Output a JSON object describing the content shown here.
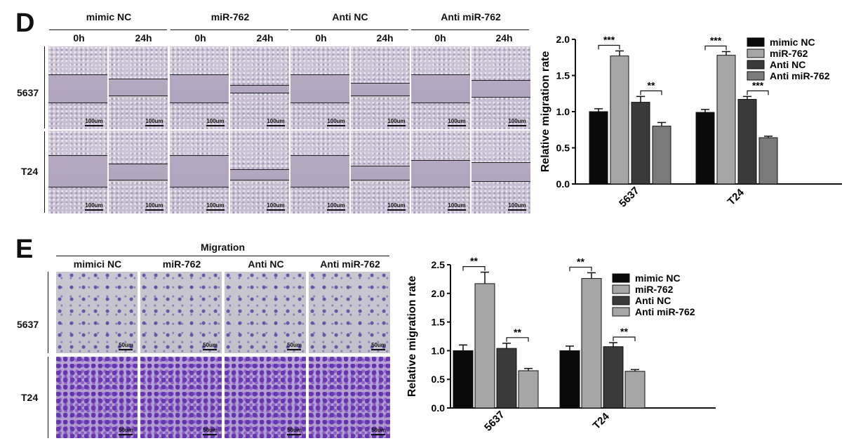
{
  "panelD": {
    "letter": "D",
    "groups": [
      "mimic NC",
      "miR-762",
      "Anti NC",
      "Anti miR-762"
    ],
    "timepoints": [
      "0h",
      "24h"
    ],
    "rows": [
      "5637",
      "T24"
    ],
    "scale_label": "100um"
  },
  "panelE": {
    "letter": "E",
    "title": "Migration",
    "groups": [
      "mimici NC",
      "miR-762",
      "Anti NC",
      "Anti miR-762"
    ],
    "rows": [
      "5637",
      "T24"
    ],
    "scale_label": "50um"
  },
  "colors": {
    "mimic_nc": "#0a0a0a",
    "mir762": "#a6a6a6",
    "anti_nc": "#3a3a3a",
    "anti_mir762": "#7a7a7a",
    "anti_mir762_E": "#a6a6a6"
  },
  "chart_data": [
    {
      "type": "bar",
      "panel": "D",
      "categories": [
        "5637",
        "T24"
      ],
      "ylabel": "Relative migration rate",
      "ylim": [
        0,
        2.0
      ],
      "yticks": [
        "0.0",
        "0.5",
        "1.0",
        "1.5",
        "2.0"
      ],
      "series": [
        {
          "name": "mimic NC",
          "values": [
            1.0,
            0.99
          ],
          "errors": [
            0.04,
            0.04
          ]
        },
        {
          "name": "miR-762",
          "values": [
            1.77,
            1.78
          ],
          "errors": [
            0.07,
            0.05
          ]
        },
        {
          "name": "Anti NC",
          "values": [
            1.13,
            1.17
          ],
          "errors": [
            0.08,
            0.04
          ]
        },
        {
          "name": "Anti miR-762",
          "values": [
            0.8,
            0.64
          ],
          "errors": [
            0.05,
            0.02
          ]
        }
      ],
      "significance": [
        {
          "category": "5637",
          "pair": [
            0,
            1
          ],
          "label": "***"
        },
        {
          "category": "5637",
          "pair": [
            2,
            3
          ],
          "label": "**"
        },
        {
          "category": "T24",
          "pair": [
            0,
            1
          ],
          "label": "***"
        },
        {
          "category": "T24",
          "pair": [
            2,
            3
          ],
          "label": "***"
        }
      ],
      "legend": "top-right"
    },
    {
      "type": "bar",
      "panel": "E",
      "categories": [
        "5637",
        "T24"
      ],
      "ylabel": "Relative migration rate",
      "ylim": [
        0,
        2.5
      ],
      "yticks": [
        "0.0",
        "0.5",
        "1.0",
        "1.5",
        "2.0",
        "2.5"
      ],
      "series": [
        {
          "name": "mimic NC",
          "values": [
            1.0,
            1.0
          ],
          "errors": [
            0.1,
            0.08
          ]
        },
        {
          "name": "miR-762",
          "values": [
            2.17,
            2.26
          ],
          "errors": [
            0.2,
            0.1
          ]
        },
        {
          "name": "Anti NC",
          "values": [
            1.04,
            1.07
          ],
          "errors": [
            0.09,
            0.07
          ]
        },
        {
          "name": "Anti miR-762",
          "values": [
            0.65,
            0.64
          ],
          "errors": [
            0.04,
            0.03
          ]
        }
      ],
      "significance": [
        {
          "category": "5637",
          "pair": [
            0,
            1
          ],
          "label": "**"
        },
        {
          "category": "5637",
          "pair": [
            2,
            3
          ],
          "label": "**"
        },
        {
          "category": "T24",
          "pair": [
            0,
            1
          ],
          "label": "**"
        },
        {
          "category": "T24",
          "pair": [
            2,
            3
          ],
          "label": "**"
        }
      ],
      "legend": "top-right"
    }
  ]
}
